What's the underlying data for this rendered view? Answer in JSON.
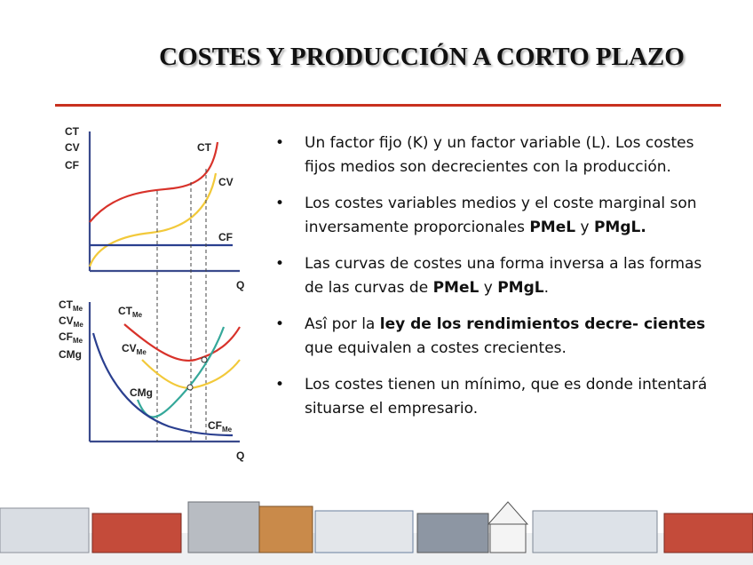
{
  "title": "COSTES Y PRODUCCIÓN A CORTO PLAZO",
  "diagram": {
    "top": {
      "labels": [
        {
          "main": "CT"
        },
        {
          "main": "CV"
        },
        {
          "main": "CF"
        },
        {
          "main": "CT"
        },
        {
          "main": "CV"
        },
        {
          "main": "CF"
        },
        {
          "main": "Q"
        }
      ]
    },
    "bottom": {
      "labels": [
        {
          "main": "CT",
          "sub": "Me"
        },
        {
          "main": "CV",
          "sub": "Me"
        },
        {
          "main": "CF",
          "sub": "Me"
        },
        {
          "main": "CMg"
        },
        {
          "main": "CT",
          "sub": "Me"
        },
        {
          "main": "CV",
          "sub": "Me"
        },
        {
          "main": "CMg"
        },
        {
          "main": "CF",
          "sub": "Me"
        },
        {
          "main": "Q"
        }
      ]
    }
  },
  "bullets": [
    [
      {
        "text": "Un factor fijo (K) y un factor variable (L). Los costes fijos medios son decrecientes con la producción."
      }
    ],
    [
      {
        "text": "Los costes variables medios y el coste marginal son inversamente proporcionales "
      },
      {
        "text": "PMeL",
        "bold": true
      },
      {
        "text": " y "
      },
      {
        "text": "PMgL.",
        "bold": true
      }
    ],
    [
      {
        "text": "Las curvas de costes una forma inversa a las formas de las curvas de "
      },
      {
        "text": "PMeL",
        "bold": true
      },
      {
        "text": " y "
      },
      {
        "text": "PMgL",
        "bold": true
      },
      {
        "text": "."
      }
    ],
    [
      {
        "text": "Asî por la "
      },
      {
        "text": "ley de los rendimientos decre- cientes",
        "bold": true
      },
      {
        "text": " que equivalen a costes crecientes."
      }
    ],
    [
      {
        "text": "Los costes tienen un mínimo, que es donde intentará situarse el empresario."
      }
    ]
  ]
}
